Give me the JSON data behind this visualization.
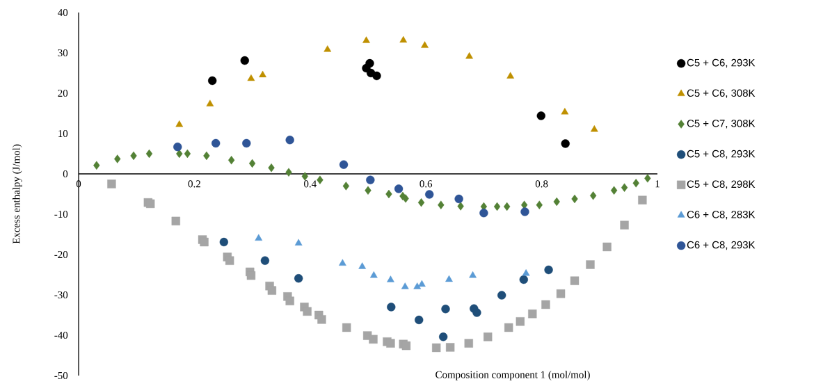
{
  "chart_data": {
    "type": "scatter",
    "xlabel": "Composition component 1 (mol/mol)",
    "ylabel": "Excess enthalpy (J/mol)",
    "xlim": [
      0,
      1
    ],
    "ylim": [
      -50,
      40
    ],
    "xticks": [
      0,
      0.2,
      0.4,
      0.6,
      0.8,
      1
    ],
    "yticks": [
      -50,
      -40,
      -30,
      -20,
      -10,
      0,
      10,
      20,
      30,
      40
    ],
    "grid": false,
    "legend": "right",
    "series": [
      {
        "name": "C5 + C6, 293K",
        "color": "#000000",
        "marker": "circle",
        "x": [
          0.231,
          0.287,
          0.497,
          0.503,
          0.505,
          0.515,
          0.799,
          0.841
        ],
        "values": [
          23.1,
          28.1,
          26.2,
          27.4,
          25.0,
          24.3,
          14.4,
          7.5
        ]
      },
      {
        "name": "C5 + C6, 308K",
        "color": "#bf9000",
        "marker": "triangle",
        "x": [
          0.174,
          0.227,
          0.298,
          0.318,
          0.43,
          0.497,
          0.561,
          0.598,
          0.675,
          0.746,
          0.84,
          0.891
        ],
        "values": [
          12.2,
          17.3,
          23.6,
          24.5,
          30.8,
          33.0,
          33.1,
          31.8,
          29.1,
          24.2,
          15.3,
          11.0
        ]
      },
      {
        "name": "C5 + C7, 308K",
        "color": "#538135",
        "marker": "diamond",
        "x": [
          0.031,
          0.067,
          0.095,
          0.122,
          0.174,
          0.188,
          0.221,
          0.264,
          0.3,
          0.333,
          0.363,
          0.391,
          0.417,
          0.462,
          0.5,
          0.536,
          0.56,
          0.565,
          0.592,
          0.626,
          0.66,
          0.7,
          0.723,
          0.74,
          0.77,
          0.796,
          0.826,
          0.857,
          0.889,
          0.925,
          0.943,
          0.963,
          0.983
        ],
        "values": [
          2.1,
          3.7,
          4.5,
          5.0,
          5.0,
          5.0,
          4.5,
          3.4,
          2.6,
          1.5,
          0.4,
          -0.6,
          -1.5,
          -3.0,
          -4.1,
          -5.0,
          -5.5,
          -6.1,
          -7.1,
          -7.7,
          -8.0,
          -8.1,
          -8.1,
          -8.1,
          -7.7,
          -7.7,
          -6.9,
          -6.2,
          -5.4,
          -4.1,
          -3.4,
          -2.3,
          -1.1
        ]
      },
      {
        "name": "C5 + C8, 293K",
        "color": "#1f4e79",
        "marker": "circle",
        "x": [
          0.251,
          0.322,
          0.38,
          0.54,
          0.588,
          0.63,
          0.634,
          0.683,
          0.688,
          0.731,
          0.769,
          0.812
        ],
        "values": [
          -16.9,
          -21.5,
          -25.9,
          -33.0,
          -36.2,
          -40.4,
          -33.5,
          -33.4,
          -34.4,
          -30.1,
          -26.2,
          -23.8
        ]
      },
      {
        "name": "C5 + C8, 298K",
        "color": "#a5a5a5",
        "marker": "square",
        "x": [
          0.057,
          0.12,
          0.124,
          0.168,
          0.214,
          0.217,
          0.257,
          0.261,
          0.296,
          0.298,
          0.33,
          0.334,
          0.361,
          0.365,
          0.39,
          0.395,
          0.415,
          0.42,
          0.463,
          0.499,
          0.509,
          0.533,
          0.539,
          0.561,
          0.566,
          0.618,
          0.642,
          0.674,
          0.707,
          0.743,
          0.763,
          0.784,
          0.807,
          0.833,
          0.857,
          0.884,
          0.913,
          0.943,
          0.974
        ],
        "values": [
          -2.5,
          -7.1,
          -7.4,
          -11.7,
          -16.3,
          -16.9,
          -20.6,
          -21.5,
          -24.3,
          -25.2,
          -27.8,
          -28.9,
          -30.4,
          -31.5,
          -33.0,
          -34.1,
          -35.0,
          -36.1,
          -38.1,
          -40.1,
          -41.0,
          -41.6,
          -42.0,
          -42.2,
          -42.6,
          -43.1,
          -43.0,
          -42.0,
          -40.4,
          -38.1,
          -36.6,
          -34.7,
          -32.4,
          -29.7,
          -26.5,
          -22.5,
          -18.1,
          -12.7,
          -6.5
        ]
      },
      {
        "name": "C6 + C8, 283K",
        "color": "#5b9bd5",
        "marker": "triangle",
        "x": [
          0.311,
          0.38,
          0.456,
          0.49,
          0.51,
          0.539,
          0.564,
          0.585,
          0.593,
          0.64,
          0.681,
          0.773
        ],
        "values": [
          -16.0,
          -17.2,
          -22.2,
          -23.0,
          -25.2,
          -26.3,
          -28.0,
          -28.0,
          -27.4,
          -26.2,
          -25.2,
          -24.7
        ]
      },
      {
        "name": "C6 + C8, 293K",
        "color": "#2f5597",
        "marker": "circle",
        "x": [
          0.171,
          0.237,
          0.29,
          0.365,
          0.458,
          0.504,
          0.553,
          0.606,
          0.657,
          0.7,
          0.771
        ],
        "values": [
          6.7,
          7.6,
          7.6,
          8.4,
          2.3,
          -1.5,
          -3.7,
          -5.1,
          -6.2,
          -9.7,
          -9.4
        ]
      }
    ]
  }
}
